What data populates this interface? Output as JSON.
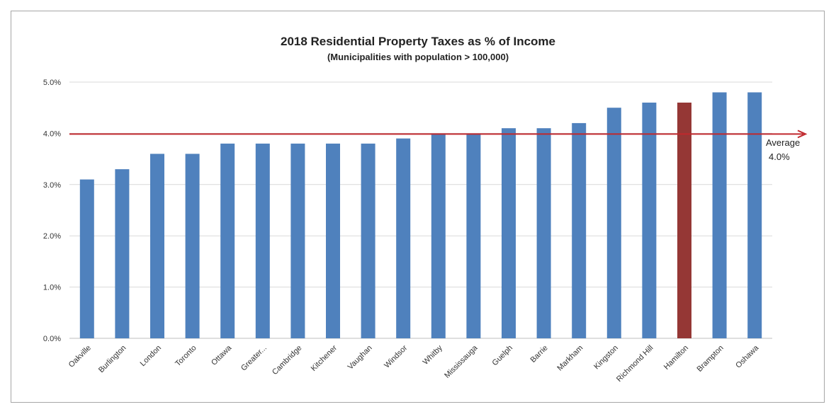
{
  "chart_data": {
    "type": "bar",
    "title": "2018 Residential Property Taxes as % of Income",
    "subtitle": "(Municipalities with population > 100,000)",
    "xlabel": "",
    "ylabel": "",
    "ylim": [
      0,
      5
    ],
    "yticks": [
      "0.0%",
      "1.0%",
      "2.0%",
      "3.0%",
      "4.0%",
      "5.0%"
    ],
    "grid": true,
    "categories": [
      "Oakville",
      "Burlington",
      "London",
      "Toronto",
      "Ottawa",
      "Greater...",
      "Cambridge",
      "Kitchener",
      "Vaughan",
      "Windsor",
      "Whitby",
      "Mississauga",
      "Guelph",
      "Barrie",
      "Markham",
      "Kingston",
      "Richmond Hill",
      "Hamilton",
      "Brampton",
      "Oshawa"
    ],
    "values": [
      3.1,
      3.3,
      3.6,
      3.6,
      3.8,
      3.8,
      3.8,
      3.8,
      3.8,
      3.9,
      4.0,
      4.0,
      4.1,
      4.1,
      4.2,
      4.5,
      4.6,
      4.6,
      4.8,
      4.8
    ],
    "highlight": "Hamilton",
    "colors": {
      "bar": "#4f81bd",
      "highlight": "#953735",
      "average_line": "#c0282d"
    },
    "average": {
      "value": 4.0,
      "label_line1": "Average",
      "label_line2": "4.0%"
    }
  }
}
